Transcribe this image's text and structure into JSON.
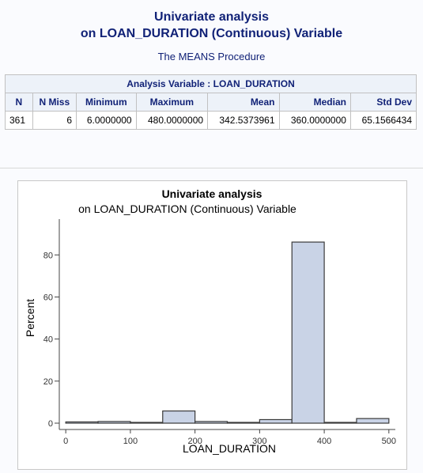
{
  "header": {
    "title_line1": "Univariate analysis",
    "title_line2": "on LOAN_DURATION (Continuous) Variable",
    "procedure": "The MEANS Procedure"
  },
  "means_table": {
    "caption": "Analysis Variable : LOAN_DURATION",
    "columns": [
      "N",
      "N Miss",
      "Minimum",
      "Maximum",
      "Mean",
      "Median",
      "Std Dev"
    ],
    "row": [
      "361",
      "6",
      "6.0000000",
      "480.0000000",
      "342.5373961",
      "360.0000000",
      "65.1566434"
    ]
  },
  "chart_data": {
    "type": "bar",
    "title": "Univariate analysis",
    "subtitle": "on LOAN_DURATION (Continuous) Variable",
    "xlabel": "LOAN_DURATION",
    "ylabel": "Percent",
    "xlim": [
      -10,
      510
    ],
    "ylim": [
      0,
      88
    ],
    "xticks": [
      0,
      100,
      200,
      300,
      400,
      500
    ],
    "yticks": [
      0,
      20,
      40,
      60,
      80
    ],
    "bin_width": 50,
    "bins": [
      {
        "x0": 0,
        "x1": 50,
        "value": 0.6
      },
      {
        "x0": 50,
        "x1": 100,
        "value": 0.8
      },
      {
        "x0": 100,
        "x1": 150,
        "value": 0.3
      },
      {
        "x0": 150,
        "x1": 200,
        "value": 5.8
      },
      {
        "x0": 200,
        "x1": 250,
        "value": 0.8
      },
      {
        "x0": 250,
        "x1": 300,
        "value": 0.0
      },
      {
        "x0": 300,
        "x1": 350,
        "value": 1.7
      },
      {
        "x0": 350,
        "x1": 400,
        "value": 86.1
      },
      {
        "x0": 400,
        "x1": 450,
        "value": 0.0
      },
      {
        "x0": 450,
        "x1": 500,
        "value": 2.2
      }
    ],
    "bar_fill": "#c9d3e6",
    "bar_stroke": "#3a3a3a",
    "grid": false
  }
}
